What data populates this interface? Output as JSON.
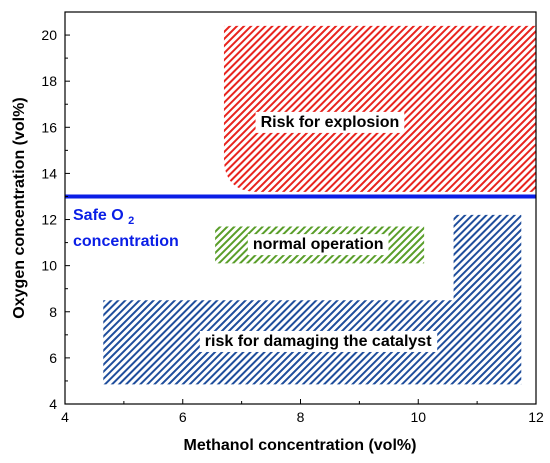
{
  "chart_data": {
    "type": "area",
    "xlabel": "Methanol concentration (vol%)",
    "ylabel": "Oxygen concentration (vol%)",
    "xlim": [
      4,
      12
    ],
    "ylim": [
      4,
      21
    ],
    "xticks": [
      4,
      6,
      8,
      10,
      12
    ],
    "yticks": [
      4,
      6,
      8,
      10,
      12,
      14,
      16,
      18,
      20
    ],
    "grid": false,
    "colors": {
      "explosion": "#e8241e",
      "normal": "#5a9e2a",
      "catalyst": "#1f4e9c",
      "safe_line": "#0a1ee6"
    },
    "safe_line": {
      "y": 13,
      "label_main": "Safe O",
      "label_sub": "2",
      "label_line2": "concentration"
    },
    "regions": [
      {
        "id": "explosion",
        "label": "Risk for explosion",
        "polygon": [
          [
            6.7,
            20.4
          ],
          [
            12.0,
            20.4
          ],
          [
            12.0,
            13.2
          ],
          [
            6.7,
            13.2
          ]
        ],
        "corner": "bottom-left",
        "label_at": [
          8.5,
          16.2
        ]
      },
      {
        "id": "normal",
        "label": "normal operation",
        "polygon": [
          [
            6.55,
            11.7
          ],
          [
            10.1,
            11.7
          ],
          [
            10.1,
            10.1
          ],
          [
            6.55,
            10.1
          ]
        ],
        "label_at": [
          8.3,
          10.9
        ]
      },
      {
        "id": "catalyst",
        "label": "risk for damaging the catalyst",
        "polygon": [
          [
            4.65,
            8.5
          ],
          [
            10.6,
            8.5
          ],
          [
            10.6,
            12.2
          ],
          [
            11.75,
            12.2
          ],
          [
            11.75,
            4.85
          ],
          [
            4.65,
            4.85
          ]
        ],
        "label_at": [
          8.3,
          6.7
        ]
      }
    ]
  }
}
